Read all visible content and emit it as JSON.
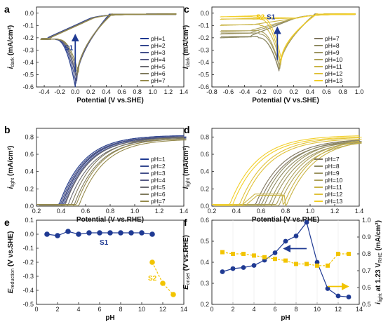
{
  "chart_data": [
    {
      "panel_label": "a",
      "type": "line",
      "xlabel": "Potential (V vs.SHE)",
      "ylabel": {
        "main": "i",
        "sub": "dark",
        "unit": " (mA/cm²)"
      },
      "xlim": [
        -0.5,
        1.4
      ],
      "ylim": [
        -0.6,
        0.05
      ],
      "xticks": [
        -0.4,
        -0.2,
        0.0,
        0.2,
        0.4,
        0.6,
        0.8,
        1.0,
        1.2,
        1.4
      ],
      "yticks": [
        -0.6,
        -0.5,
        -0.4,
        -0.3,
        -0.2,
        -0.1,
        0.0
      ],
      "xtick_labels": [
        "-0.4",
        "-0.2",
        "0.0",
        "0.2",
        "0.4",
        "0.6",
        "0.8",
        "1.0",
        "1.2",
        "1.4"
      ],
      "ytick_labels": [
        "-0.6",
        "-0.5",
        "-0.4",
        "-0.3",
        "-0.2",
        "-0.1",
        "0.0"
      ],
      "legend_position": "right",
      "annotation": {
        "text": "S1",
        "color": "#1f3a93",
        "x": 0.0,
        "y": -0.3,
        "arrow_from": -0.48,
        "arrow_to": -0.18
      },
      "series": [
        {
          "name": "pH=1",
          "color": "#1f3a93",
          "peak": [
            0.0,
            -0.6
          ],
          "plateau": -0.215,
          "xstart": -0.45,
          "xend": 1.3
        },
        {
          "name": "pH=2",
          "color": "#33478f",
          "peak": [
            0.0,
            -0.59
          ],
          "plateau": -0.215,
          "xstart": -0.45,
          "xend": 1.3
        },
        {
          "name": "pH=3",
          "color": "#44508a",
          "peak": [
            0.01,
            -0.57
          ],
          "plateau": -0.215,
          "xstart": -0.45,
          "xend": 1.3
        },
        {
          "name": "pH=4",
          "color": "#555a84",
          "peak": [
            0.02,
            -0.55
          ],
          "plateau": -0.215,
          "xstart": -0.45,
          "xend": 1.3
        },
        {
          "name": "pH=5",
          "color": "#6a6a72",
          "peak": [
            0.02,
            -0.52
          ],
          "plateau": -0.215,
          "xstart": -0.45,
          "xend": 1.3
        },
        {
          "name": "pH=6",
          "color": "#7f7a5e",
          "peak": [
            0.03,
            -0.5
          ],
          "plateau": -0.215,
          "xstart": -0.45,
          "xend": 1.3
        },
        {
          "name": "pH=7",
          "color": "#958a4c",
          "peak": [
            0.04,
            -0.48
          ],
          "plateau": -0.215,
          "xstart": -0.45,
          "xend": 1.3
        }
      ]
    },
    {
      "panel_label": "c",
      "type": "line",
      "xlabel": "Potential (V vs.SHE)",
      "ylabel": {
        "main": "i",
        "sub": "dark",
        "unit": " (mA/cm²)"
      },
      "xlim": [
        -0.8,
        1.0
      ],
      "ylim": [
        -0.6,
        0.05
      ],
      "xticks": [
        -0.8,
        -0.6,
        -0.4,
        -0.2,
        0.0,
        0.2,
        0.4,
        0.6,
        0.8,
        1.0
      ],
      "yticks": [
        -0.6,
        -0.5,
        -0.4,
        -0.3,
        -0.2,
        -0.1,
        0.0
      ],
      "xtick_labels": [
        "-0.8",
        "-0.6",
        "-0.4",
        "-0.2",
        "0.0",
        "0.2",
        "0.4",
        "0.6",
        "0.8",
        "1.0"
      ],
      "ytick_labels": [
        "-0.6",
        "-0.5",
        "-0.4",
        "-0.3",
        "-0.2",
        "-0.1",
        "0.0"
      ],
      "legend_position": "right",
      "annotations": [
        {
          "text": "S1",
          "color": "#1f3a93",
          "x": 0.0,
          "y": -0.05,
          "arrow_from": -0.38,
          "arrow_to": -0.12
        },
        {
          "text": "S2",
          "color": "#f2c400",
          "x": -0.26,
          "y": -0.05
        }
      ],
      "series": [
        {
          "name": "pH=7",
          "color": "#7f7660",
          "peak": [
            0.02,
            -0.47
          ],
          "plateau": -0.2,
          "xstart": -0.7,
          "xend": 0.95
        },
        {
          "name": "pH=8",
          "color": "#8d8a62",
          "peak": [
            0.02,
            -0.46
          ],
          "plateau": -0.2,
          "xstart": -0.7,
          "xend": 0.95
        },
        {
          "name": "pH=9",
          "color": "#9c9462",
          "peak": [
            0.03,
            -0.45
          ],
          "plateau": -0.17,
          "xstart": -0.7,
          "xend": 0.95
        },
        {
          "name": "pH=10",
          "color": "#aea25a",
          "peak": [
            0.03,
            -0.44
          ],
          "plateau": -0.15,
          "xstart": -0.7,
          "xend": 0.95
        },
        {
          "name": "pH=11",
          "color": "#c9b445",
          "peak": [
            0.04,
            -0.42
          ],
          "plateau": -0.1,
          "xstart": -0.7,
          "xend": 0.95
        },
        {
          "name": "pH=12",
          "color": "#e0c23a",
          "peak": [
            0.04,
            -0.4
          ],
          "plateau": -0.05,
          "xstart": -0.7,
          "xend": 0.95
        },
        {
          "name": "pH=13",
          "color": "#f2cf2a",
          "peak": [
            0.05,
            -0.38
          ],
          "plateau": -0.03,
          "xstart": -0.7,
          "xend": 0.95
        }
      ]
    },
    {
      "panel_label": "b",
      "type": "line",
      "xlabel": "Potential (V vs.RHE)",
      "ylabel": {
        "main": "i",
        "sub": "light",
        "unit": " (mA/cm²)"
      },
      "xlim": [
        0.2,
        1.4
      ],
      "ylim": [
        0.0,
        0.9
      ],
      "xticks": [
        0.2,
        0.4,
        0.6,
        0.8,
        1.0,
        1.2,
        1.4
      ],
      "yticks": [
        0.0,
        0.2,
        0.4,
        0.6,
        0.8
      ],
      "xtick_labels": [
        "0.2",
        "0.4",
        "0.6",
        "0.8",
        "1.0",
        "1.2",
        "1.4"
      ],
      "ytick_labels": [
        "0.0",
        "0.2",
        "0.4",
        "0.6",
        "0.8"
      ],
      "legend_position": "right",
      "series": [
        {
          "name": "pH=1",
          "color": "#1f3a93",
          "onset": 0.38,
          "plateau": 0.82,
          "k": 5.0
        },
        {
          "name": "pH=2",
          "color": "#33478f",
          "onset": 0.38,
          "plateau": 0.82,
          "k": 5.0
        },
        {
          "name": "pH=3",
          "color": "#44508a",
          "onset": 0.39,
          "plateau": 0.81,
          "k": 5.0
        },
        {
          "name": "pH=4",
          "color": "#555a84",
          "onset": 0.4,
          "plateau": 0.81,
          "k": 5.0
        },
        {
          "name": "pH=5",
          "color": "#6a6a72",
          "onset": 0.43,
          "plateau": 0.8,
          "k": 5.0
        },
        {
          "name": "pH=6",
          "color": "#7f7a5e",
          "onset": 0.48,
          "plateau": 0.8,
          "k": 5.0
        },
        {
          "name": "pH=7",
          "color": "#958a4c",
          "onset": 0.52,
          "plateau": 0.79,
          "k": 5.0
        }
      ]
    },
    {
      "panel_label": "d",
      "type": "line",
      "xlabel": "Potential (V vs.RHE)",
      "ylabel": {
        "main": "i",
        "sub": "light",
        "unit": " (mA/cm²)"
      },
      "xlim": [
        0.2,
        1.4
      ],
      "ylim": [
        0.0,
        0.9
      ],
      "xticks": [
        0.2,
        0.4,
        0.6,
        0.8,
        1.0,
        1.2,
        1.4
      ],
      "yticks": [
        0.0,
        0.2,
        0.4,
        0.6,
        0.8
      ],
      "xtick_labels": [
        "0.2",
        "0.4",
        "0.6",
        "0.8",
        "1.0",
        "1.2",
        "1.4"
      ],
      "ytick_labels": [
        "0.0",
        "0.2",
        "0.4",
        "0.6",
        "0.8"
      ],
      "legend_position": "right",
      "series": [
        {
          "name": "pH=7",
          "color": "#7f7660",
          "onset": 0.55,
          "plateau": 0.78,
          "k": 4.5
        },
        {
          "name": "pH=8",
          "color": "#8d8a62",
          "onset": 0.6,
          "plateau": 0.78,
          "k": 4.5
        },
        {
          "name": "pH=9",
          "color": "#9c9462",
          "onset": 0.66,
          "plateau": 0.78,
          "k": 4.5
        },
        {
          "name": "pH=10",
          "color": "#aea25a",
          "onset": 0.72,
          "plateau": 0.78,
          "k": 4.5
        },
        {
          "name": "pH=11",
          "color": "#c9b445",
          "onset": 0.78,
          "plateau": 0.8,
          "k": 4.5,
          "bump": 0.12
        },
        {
          "name": "pH=12",
          "color": "#e0c23a",
          "onset": 0.42,
          "plateau": 0.8,
          "k": 4.5
        },
        {
          "name": "pH=13",
          "color": "#f2cf2a",
          "onset": 0.34,
          "plateau": 0.82,
          "k": 4.5
        }
      ]
    },
    {
      "panel_label": "e",
      "type": "scatter",
      "xlabel": "pH",
      "ylabel": {
        "main": "E",
        "sub": "reduction",
        "unit": " (V vs.SHE)"
      },
      "xlim": [
        0,
        14
      ],
      "ylim": [
        -0.5,
        0.1
      ],
      "xticks": [
        0,
        2,
        4,
        6,
        8,
        10,
        12,
        14
      ],
      "yticks": [
        -0.5,
        -0.4,
        -0.3,
        -0.2,
        -0.1,
        0.0,
        0.1
      ],
      "xtick_labels": [
        "0",
        "2",
        "4",
        "6",
        "8",
        "10",
        "12",
        "14"
      ],
      "ytick_labels": [
        "-0.5",
        "-0.4",
        "-0.3",
        "-0.2",
        "-0.1",
        "0.0",
        "0.1"
      ],
      "series": [
        {
          "name": "S1",
          "color": "#1f3a93",
          "marker": "circle",
          "x": [
            1,
            2,
            3,
            4,
            5,
            6,
            7,
            8,
            9,
            10,
            11
          ],
          "y": [
            0.0,
            -0.01,
            0.02,
            0.0,
            0.01,
            0.01,
            0.01,
            0.01,
            0.01,
            0.01,
            0.0
          ]
        },
        {
          "name": "S2",
          "color": "#f2c400",
          "marker": "circle",
          "x": [
            11,
            12,
            13
          ],
          "y": [
            -0.2,
            -0.35,
            -0.43
          ]
        }
      ],
      "labels": [
        {
          "text": "S1",
          "color": "#1f3a93",
          "x": 6.0,
          "y": -0.075
        },
        {
          "text": "S2",
          "color": "#f2c400",
          "x": 10.6,
          "y": -0.33
        }
      ]
    },
    {
      "panel_label": "f",
      "type": "scatter",
      "xlabel": "pH",
      "ylabel": {
        "main": "E",
        "sub": "onset",
        "unit": " (V vs.RHE)"
      },
      "ylabel_right": {
        "main": "i",
        "sub": "light",
        "unit": " at 1.23 V",
        "sub2": "RHE",
        "unit2": " (mA/cm²)"
      },
      "xlim": [
        0,
        14
      ],
      "ylim": [
        0.2,
        0.6
      ],
      "ylim_right": [
        0.5,
        1.0
      ],
      "xticks": [
        0,
        2,
        4,
        6,
        8,
        10,
        12,
        14
      ],
      "yticks": [
        0.2,
        0.3,
        0.4,
        0.5,
        0.6
      ],
      "yticks_right": [
        0.5,
        0.6,
        0.7,
        0.8,
        0.9,
        1.0
      ],
      "xtick_labels": [
        "0",
        "2",
        "4",
        "6",
        "8",
        "10",
        "12",
        "14"
      ],
      "ytick_labels": [
        "0.2",
        "0.3",
        "0.4",
        "0.5",
        "0.6"
      ],
      "ytick_labels_right": [
        "0.5",
        "0.6",
        "0.7",
        "0.8",
        "0.9",
        "1.0"
      ],
      "series": [
        {
          "name": "E onset",
          "axis": "left",
          "color": "#1f3a93",
          "marker": "circle",
          "x": [
            1,
            2,
            3,
            4,
            5,
            6,
            7,
            8,
            9,
            10,
            11,
            12,
            13
          ],
          "y": [
            0.355,
            0.37,
            0.375,
            0.385,
            0.41,
            0.445,
            0.5,
            0.525,
            0.59,
            0.4,
            0.275,
            0.24,
            0.235
          ]
        },
        {
          "name": "i light at 1.23 V RHE",
          "axis": "right",
          "color": "#f2c400",
          "marker": "square",
          "x": [
            1,
            2,
            3,
            4,
            5,
            6,
            7,
            8,
            9,
            10,
            11,
            12,
            13
          ],
          "y": [
            0.81,
            0.8,
            0.8,
            0.79,
            0.78,
            0.77,
            0.76,
            0.74,
            0.74,
            0.73,
            0.73,
            0.8,
            0.8
          ]
        }
      ],
      "arrows": [
        {
          "color": "#1f3a93",
          "y_axis": "left",
          "x_from": 9.0,
          "x_to": 6.9,
          "y": 0.465
        },
        {
          "color": "#f2c400",
          "y_axis": "left",
          "x_from": 11.0,
          "x_to": 12.9,
          "y": 0.285
        }
      ]
    }
  ]
}
